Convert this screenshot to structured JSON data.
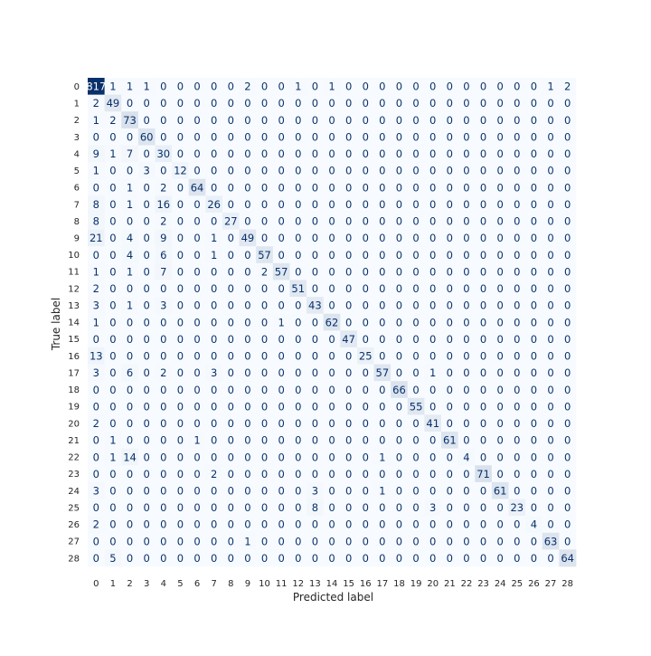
{
  "chart_data": {
    "type": "heatmap",
    "title": "",
    "xlabel": "Predicted label",
    "ylabel": "True label",
    "x_tick_labels": [
      "0",
      "1",
      "2",
      "3",
      "4",
      "5",
      "6",
      "7",
      "8",
      "9",
      "10",
      "11",
      "12",
      "13",
      "14",
      "15",
      "16",
      "17",
      "18",
      "19",
      "20",
      "21",
      "22",
      "23",
      "24",
      "25",
      "26",
      "27",
      "28"
    ],
    "y_tick_labels": [
      "0",
      "1",
      "2",
      "3",
      "4",
      "5",
      "6",
      "7",
      "8",
      "9",
      "10",
      "11",
      "12",
      "13",
      "14",
      "15",
      "16",
      "17",
      "18",
      "19",
      "20",
      "21",
      "22",
      "23",
      "24",
      "25",
      "26",
      "27",
      "28"
    ],
    "colormap": "Blues",
    "low_color": "#f7fbff",
    "high_color": "#08306b",
    "text_dark": "#08306b",
    "text_light": "#ffffff",
    "grid": false,
    "colorbar": false,
    "matrix": [
      [
        817,
        1,
        1,
        1,
        0,
        0,
        0,
        0,
        0,
        2,
        0,
        0,
        1,
        0,
        1,
        0,
        0,
        0,
        0,
        0,
        0,
        0,
        0,
        0,
        0,
        0,
        0,
        1,
        2
      ],
      [
        2,
        49,
        0,
        0,
        0,
        0,
        0,
        0,
        0,
        0,
        0,
        0,
        0,
        0,
        0,
        0,
        0,
        0,
        0,
        0,
        0,
        0,
        0,
        0,
        0,
        0,
        0,
        0,
        0
      ],
      [
        1,
        2,
        73,
        0,
        0,
        0,
        0,
        0,
        0,
        0,
        0,
        0,
        0,
        0,
        0,
        0,
        0,
        0,
        0,
        0,
        0,
        0,
        0,
        0,
        0,
        0,
        0,
        0,
        0
      ],
      [
        0,
        0,
        0,
        60,
        0,
        0,
        0,
        0,
        0,
        0,
        0,
        0,
        0,
        0,
        0,
        0,
        0,
        0,
        0,
        0,
        0,
        0,
        0,
        0,
        0,
        0,
        0,
        0,
        0
      ],
      [
        9,
        1,
        7,
        0,
        30,
        0,
        0,
        0,
        0,
        0,
        0,
        0,
        0,
        0,
        0,
        0,
        0,
        0,
        0,
        0,
        0,
        0,
        0,
        0,
        0,
        0,
        0,
        0,
        0
      ],
      [
        1,
        0,
        0,
        3,
        0,
        12,
        0,
        0,
        0,
        0,
        0,
        0,
        0,
        0,
        0,
        0,
        0,
        0,
        0,
        0,
        0,
        0,
        0,
        0,
        0,
        0,
        0,
        0,
        0
      ],
      [
        0,
        0,
        1,
        0,
        2,
        0,
        64,
        0,
        0,
        0,
        0,
        0,
        0,
        0,
        0,
        0,
        0,
        0,
        0,
        0,
        0,
        0,
        0,
        0,
        0,
        0,
        0,
        0,
        0
      ],
      [
        8,
        0,
        1,
        0,
        16,
        0,
        0,
        26,
        0,
        0,
        0,
        0,
        0,
        0,
        0,
        0,
        0,
        0,
        0,
        0,
        0,
        0,
        0,
        0,
        0,
        0,
        0,
        0,
        0
      ],
      [
        8,
        0,
        0,
        0,
        2,
        0,
        0,
        0,
        27,
        0,
        0,
        0,
        0,
        0,
        0,
        0,
        0,
        0,
        0,
        0,
        0,
        0,
        0,
        0,
        0,
        0,
        0,
        0,
        0
      ],
      [
        21,
        0,
        4,
        0,
        9,
        0,
        0,
        1,
        0,
        49,
        0,
        0,
        0,
        0,
        0,
        0,
        0,
        0,
        0,
        0,
        0,
        0,
        0,
        0,
        0,
        0,
        0,
        0,
        0
      ],
      [
        0,
        0,
        4,
        0,
        6,
        0,
        0,
        1,
        0,
        0,
        57,
        0,
        0,
        0,
        0,
        0,
        0,
        0,
        0,
        0,
        0,
        0,
        0,
        0,
        0,
        0,
        0,
        0,
        0
      ],
      [
        1,
        0,
        1,
        0,
        7,
        0,
        0,
        0,
        0,
        0,
        2,
        57,
        0,
        0,
        0,
        0,
        0,
        0,
        0,
        0,
        0,
        0,
        0,
        0,
        0,
        0,
        0,
        0,
        0
      ],
      [
        2,
        0,
        0,
        0,
        0,
        0,
        0,
        0,
        0,
        0,
        0,
        0,
        51,
        0,
        0,
        0,
        0,
        0,
        0,
        0,
        0,
        0,
        0,
        0,
        0,
        0,
        0,
        0,
        0
      ],
      [
        3,
        0,
        1,
        0,
        3,
        0,
        0,
        0,
        0,
        0,
        0,
        0,
        0,
        43,
        0,
        0,
        0,
        0,
        0,
        0,
        0,
        0,
        0,
        0,
        0,
        0,
        0,
        0,
        0
      ],
      [
        1,
        0,
        0,
        0,
        0,
        0,
        0,
        0,
        0,
        0,
        0,
        1,
        0,
        0,
        62,
        0,
        0,
        0,
        0,
        0,
        0,
        0,
        0,
        0,
        0,
        0,
        0,
        0,
        0
      ],
      [
        0,
        0,
        0,
        0,
        0,
        0,
        0,
        0,
        0,
        0,
        0,
        0,
        0,
        0,
        0,
        47,
        0,
        0,
        0,
        0,
        0,
        0,
        0,
        0,
        0,
        0,
        0,
        0,
        0
      ],
      [
        13,
        0,
        0,
        0,
        0,
        0,
        0,
        0,
        0,
        0,
        0,
        0,
        0,
        0,
        0,
        0,
        25,
        0,
        0,
        0,
        0,
        0,
        0,
        0,
        0,
        0,
        0,
        0,
        0
      ],
      [
        3,
        0,
        6,
        0,
        2,
        0,
        0,
        3,
        0,
        0,
        0,
        0,
        0,
        0,
        0,
        0,
        0,
        57,
        0,
        0,
        1,
        0,
        0,
        0,
        0,
        0,
        0,
        0,
        0
      ],
      [
        0,
        0,
        0,
        0,
        0,
        0,
        0,
        0,
        0,
        0,
        0,
        0,
        0,
        0,
        0,
        0,
        0,
        0,
        66,
        0,
        0,
        0,
        0,
        0,
        0,
        0,
        0,
        0,
        0
      ],
      [
        0,
        0,
        0,
        0,
        0,
        0,
        0,
        0,
        0,
        0,
        0,
        0,
        0,
        0,
        0,
        0,
        0,
        0,
        0,
        55,
        0,
        0,
        0,
        0,
        0,
        0,
        0,
        0,
        0
      ],
      [
        2,
        0,
        0,
        0,
        0,
        0,
        0,
        0,
        0,
        0,
        0,
        0,
        0,
        0,
        0,
        0,
        0,
        0,
        0,
        0,
        41,
        0,
        0,
        0,
        0,
        0,
        0,
        0,
        0
      ],
      [
        0,
        1,
        0,
        0,
        0,
        0,
        1,
        0,
        0,
        0,
        0,
        0,
        0,
        0,
        0,
        0,
        0,
        0,
        0,
        0,
        0,
        61,
        0,
        0,
        0,
        0,
        0,
        0,
        0
      ],
      [
        0,
        1,
        14,
        0,
        0,
        0,
        0,
        0,
        0,
        0,
        0,
        0,
        0,
        0,
        0,
        0,
        0,
        1,
        0,
        0,
        0,
        0,
        4,
        0,
        0,
        0,
        0,
        0,
        0
      ],
      [
        0,
        0,
        0,
        0,
        0,
        0,
        0,
        2,
        0,
        0,
        0,
        0,
        0,
        0,
        0,
        0,
        0,
        0,
        0,
        0,
        0,
        0,
        0,
        71,
        0,
        0,
        0,
        0,
        0
      ],
      [
        3,
        0,
        0,
        0,
        0,
        0,
        0,
        0,
        0,
        0,
        0,
        0,
        0,
        3,
        0,
        0,
        0,
        1,
        0,
        0,
        0,
        0,
        0,
        0,
        61,
        0,
        0,
        0,
        0
      ],
      [
        0,
        0,
        0,
        0,
        0,
        0,
        0,
        0,
        0,
        0,
        0,
        0,
        0,
        8,
        0,
        0,
        0,
        0,
        0,
        0,
        3,
        0,
        0,
        0,
        0,
        23,
        0,
        0,
        0
      ],
      [
        2,
        0,
        0,
        0,
        0,
        0,
        0,
        0,
        0,
        0,
        0,
        0,
        0,
        0,
        0,
        0,
        0,
        0,
        0,
        0,
        0,
        0,
        0,
        0,
        0,
        0,
        4,
        0,
        0
      ],
      [
        0,
        0,
        0,
        0,
        0,
        0,
        0,
        0,
        0,
        1,
        0,
        0,
        0,
        0,
        0,
        0,
        0,
        0,
        0,
        0,
        0,
        0,
        0,
        0,
        0,
        0,
        0,
        63,
        0
      ],
      [
        0,
        5,
        0,
        0,
        0,
        0,
        0,
        0,
        0,
        0,
        0,
        0,
        0,
        0,
        0,
        0,
        0,
        0,
        0,
        0,
        0,
        0,
        0,
        0,
        0,
        0,
        0,
        0,
        64
      ]
    ]
  }
}
